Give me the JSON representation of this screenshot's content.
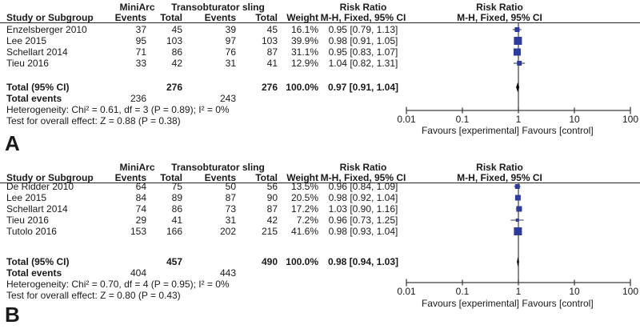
{
  "colors": {
    "marker_blue": "#2d3c9c",
    "diamond_black": "#0a0a0a",
    "line_gray": "#3f3f3f",
    "rule_dark": "#2a2a2a"
  },
  "chart_data": [
    {
      "type": "scatter",
      "subtype": "forest-plot",
      "panel_label": "A",
      "group1": "MiniArc",
      "group2": "Transobturator sling",
      "columns": {
        "study": "Study or Subgroup",
        "events": "Events",
        "total": "Total",
        "weight": "Weight",
        "risk_ratio": "Risk Ratio",
        "ci": "M-H, Fixed, 95% CI"
      },
      "studies": [
        {
          "name": "Enzelsberger 2010",
          "events1": "37",
          "total1": "45",
          "events2": "39",
          "total2": "45",
          "weight": "16.1%",
          "weight_pct": 16.1,
          "rr": 0.95,
          "ci_low": 0.79,
          "ci_high": 1.13,
          "rr_text": "0.95 [0.79, 1.13]"
        },
        {
          "name": "Lee 2015",
          "events1": "95",
          "total1": "103",
          "events2": "97",
          "total2": "103",
          "weight": "39.9%",
          "weight_pct": 39.9,
          "rr": 0.98,
          "ci_low": 0.91,
          "ci_high": 1.05,
          "rr_text": "0.98 [0.91, 1.05]"
        },
        {
          "name": "Schellart 2014",
          "events1": "71",
          "total1": "86",
          "events2": "76",
          "total2": "87",
          "weight": "31.1%",
          "weight_pct": 31.1,
          "rr": 0.95,
          "ci_low": 0.83,
          "ci_high": 1.07,
          "rr_text": "0.95 [0.83, 1.07]"
        },
        {
          "name": "Tieu 2016",
          "events1": "33",
          "total1": "42",
          "events2": "31",
          "total2": "41",
          "weight": "12.9%",
          "weight_pct": 12.9,
          "rr": 1.04,
          "ci_low": 0.82,
          "ci_high": 1.31,
          "rr_text": "1.04 [0.82, 1.31]"
        }
      ],
      "total": {
        "label": "Total (95% CI)",
        "total1": "276",
        "total2": "276",
        "weight": "100.0%",
        "rr": 0.97,
        "ci_low": 0.91,
        "ci_high": 1.04,
        "rr_text": "0.97 [0.91, 1.04]"
      },
      "total_events": {
        "label": "Total events",
        "events1": "236",
        "events2": "243"
      },
      "heterogeneity": "Heterogeneity: Chi² = 0.61, df = 3 (P = 0.89); I² = 0%",
      "overall_effect": "Test for overall effect: Z = 0.88 (P = 0.38)",
      "x_axis": {
        "scale": "log",
        "min": 0.01,
        "max": 100,
        "center_line": 1,
        "ticks": [
          "0.01",
          "0.1",
          "1",
          "10",
          "100"
        ],
        "favours_left": "Favours [experimental]",
        "favours_right": "Favours [control]"
      }
    },
    {
      "type": "scatter",
      "subtype": "forest-plot",
      "panel_label": "B",
      "group1": "MiniArc",
      "group2": "Transobturator sling",
      "columns": {
        "study": "Study or Subgroup",
        "events": "Events",
        "total": "Total",
        "weight": "Weight",
        "risk_ratio": "Risk Ratio",
        "ci": "M-H, Fixed, 95% CI"
      },
      "studies": [
        {
          "name": "De Ridder 2010",
          "events1": "64",
          "total1": "75",
          "events2": "50",
          "total2": "56",
          "weight": "13.5%",
          "weight_pct": 13.5,
          "rr": 0.96,
          "ci_low": 0.84,
          "ci_high": 1.09,
          "rr_text": "0.96 [0.84, 1.09]"
        },
        {
          "name": "Lee 2015",
          "events1": "84",
          "total1": "89",
          "events2": "87",
          "total2": "90",
          "weight": "20.5%",
          "weight_pct": 20.5,
          "rr": 0.98,
          "ci_low": 0.92,
          "ci_high": 1.04,
          "rr_text": "0.98 [0.92, 1.04]"
        },
        {
          "name": "Schellart 2014",
          "events1": "74",
          "total1": "86",
          "events2": "73",
          "total2": "87",
          "weight": "17.2%",
          "weight_pct": 17.2,
          "rr": 1.03,
          "ci_low": 0.9,
          "ci_high": 1.16,
          "rr_text": "1.03 [0.90, 1.16]"
        },
        {
          "name": "Tieu 2016",
          "events1": "29",
          "total1": "41",
          "events2": "31",
          "total2": "42",
          "weight": "7.2%",
          "weight_pct": 7.2,
          "rr": 0.96,
          "ci_low": 0.73,
          "ci_high": 1.25,
          "rr_text": "0.96 [0.73, 1.25]"
        },
        {
          "name": "Tutolo 2016",
          "events1": "153",
          "total1": "166",
          "events2": "202",
          "total2": "215",
          "weight": "41.6%",
          "weight_pct": 41.6,
          "rr": 0.98,
          "ci_low": 0.93,
          "ci_high": 1.04,
          "rr_text": "0.98 [0.93, 1.04]"
        }
      ],
      "total": {
        "label": "Total (95% CI)",
        "total1": "457",
        "total2": "490",
        "weight": "100.0%",
        "rr": 0.98,
        "ci_low": 0.94,
        "ci_high": 1.03,
        "rr_text": "0.98 [0.94, 1.03]"
      },
      "total_events": {
        "label": "Total events",
        "events1": "404",
        "events2": "443"
      },
      "heterogeneity": "Heterogeneity: Chi² = 0.70, df = 4 (P = 0.95); I² = 0%",
      "overall_effect": "Test for overall effect: Z = 0.80 (P = 0.43)",
      "x_axis": {
        "scale": "log",
        "min": 0.01,
        "max": 100,
        "center_line": 1,
        "ticks": [
          "0.01",
          "0.1",
          "1",
          "10",
          "100"
        ],
        "favours_left": "Favours [experimental]",
        "favours_right": "Favours [control]"
      }
    }
  ]
}
